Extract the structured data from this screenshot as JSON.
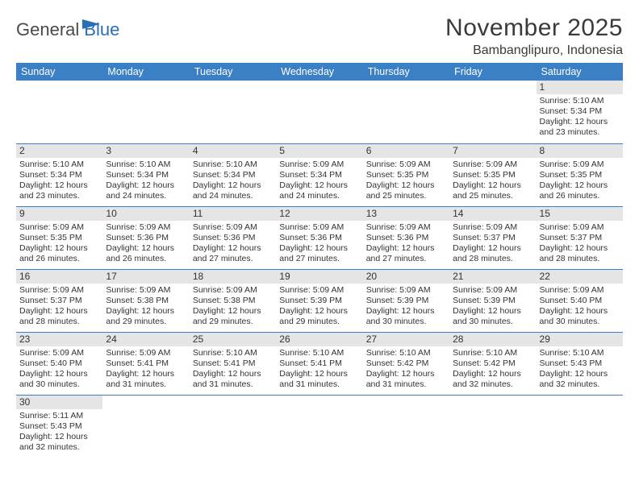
{
  "logo": {
    "general": "General",
    "blue": "Blue"
  },
  "title": "November 2025",
  "location": "Bambanglipuro, Indonesia",
  "colors": {
    "header_bg": "#3b7fc4",
    "header_fg": "#ffffff",
    "daynum_bg": "#e5e5e5",
    "border": "#3b7fc4",
    "text": "#333333",
    "logo_gray": "#4a4a4a",
    "logo_blue": "#2a6fb5"
  },
  "weekdays": [
    "Sunday",
    "Monday",
    "Tuesday",
    "Wednesday",
    "Thursday",
    "Friday",
    "Saturday"
  ],
  "weeks": [
    [
      null,
      null,
      null,
      null,
      null,
      null,
      {
        "n": "1",
        "sr": "Sunrise: 5:10 AM",
        "ss": "Sunset: 5:34 PM",
        "dl1": "Daylight: 12 hours",
        "dl2": "and 23 minutes."
      }
    ],
    [
      {
        "n": "2",
        "sr": "Sunrise: 5:10 AM",
        "ss": "Sunset: 5:34 PM",
        "dl1": "Daylight: 12 hours",
        "dl2": "and 23 minutes."
      },
      {
        "n": "3",
        "sr": "Sunrise: 5:10 AM",
        "ss": "Sunset: 5:34 PM",
        "dl1": "Daylight: 12 hours",
        "dl2": "and 24 minutes."
      },
      {
        "n": "4",
        "sr": "Sunrise: 5:10 AM",
        "ss": "Sunset: 5:34 PM",
        "dl1": "Daylight: 12 hours",
        "dl2": "and 24 minutes."
      },
      {
        "n": "5",
        "sr": "Sunrise: 5:09 AM",
        "ss": "Sunset: 5:34 PM",
        "dl1": "Daylight: 12 hours",
        "dl2": "and 24 minutes."
      },
      {
        "n": "6",
        "sr": "Sunrise: 5:09 AM",
        "ss": "Sunset: 5:35 PM",
        "dl1": "Daylight: 12 hours",
        "dl2": "and 25 minutes."
      },
      {
        "n": "7",
        "sr": "Sunrise: 5:09 AM",
        "ss": "Sunset: 5:35 PM",
        "dl1": "Daylight: 12 hours",
        "dl2": "and 25 minutes."
      },
      {
        "n": "8",
        "sr": "Sunrise: 5:09 AM",
        "ss": "Sunset: 5:35 PM",
        "dl1": "Daylight: 12 hours",
        "dl2": "and 26 minutes."
      }
    ],
    [
      {
        "n": "9",
        "sr": "Sunrise: 5:09 AM",
        "ss": "Sunset: 5:35 PM",
        "dl1": "Daylight: 12 hours",
        "dl2": "and 26 minutes."
      },
      {
        "n": "10",
        "sr": "Sunrise: 5:09 AM",
        "ss": "Sunset: 5:36 PM",
        "dl1": "Daylight: 12 hours",
        "dl2": "and 26 minutes."
      },
      {
        "n": "11",
        "sr": "Sunrise: 5:09 AM",
        "ss": "Sunset: 5:36 PM",
        "dl1": "Daylight: 12 hours",
        "dl2": "and 27 minutes."
      },
      {
        "n": "12",
        "sr": "Sunrise: 5:09 AM",
        "ss": "Sunset: 5:36 PM",
        "dl1": "Daylight: 12 hours",
        "dl2": "and 27 minutes."
      },
      {
        "n": "13",
        "sr": "Sunrise: 5:09 AM",
        "ss": "Sunset: 5:36 PM",
        "dl1": "Daylight: 12 hours",
        "dl2": "and 27 minutes."
      },
      {
        "n": "14",
        "sr": "Sunrise: 5:09 AM",
        "ss": "Sunset: 5:37 PM",
        "dl1": "Daylight: 12 hours",
        "dl2": "and 28 minutes."
      },
      {
        "n": "15",
        "sr": "Sunrise: 5:09 AM",
        "ss": "Sunset: 5:37 PM",
        "dl1": "Daylight: 12 hours",
        "dl2": "and 28 minutes."
      }
    ],
    [
      {
        "n": "16",
        "sr": "Sunrise: 5:09 AM",
        "ss": "Sunset: 5:37 PM",
        "dl1": "Daylight: 12 hours",
        "dl2": "and 28 minutes."
      },
      {
        "n": "17",
        "sr": "Sunrise: 5:09 AM",
        "ss": "Sunset: 5:38 PM",
        "dl1": "Daylight: 12 hours",
        "dl2": "and 29 minutes."
      },
      {
        "n": "18",
        "sr": "Sunrise: 5:09 AM",
        "ss": "Sunset: 5:38 PM",
        "dl1": "Daylight: 12 hours",
        "dl2": "and 29 minutes."
      },
      {
        "n": "19",
        "sr": "Sunrise: 5:09 AM",
        "ss": "Sunset: 5:39 PM",
        "dl1": "Daylight: 12 hours",
        "dl2": "and 29 minutes."
      },
      {
        "n": "20",
        "sr": "Sunrise: 5:09 AM",
        "ss": "Sunset: 5:39 PM",
        "dl1": "Daylight: 12 hours",
        "dl2": "and 30 minutes."
      },
      {
        "n": "21",
        "sr": "Sunrise: 5:09 AM",
        "ss": "Sunset: 5:39 PM",
        "dl1": "Daylight: 12 hours",
        "dl2": "and 30 minutes."
      },
      {
        "n": "22",
        "sr": "Sunrise: 5:09 AM",
        "ss": "Sunset: 5:40 PM",
        "dl1": "Daylight: 12 hours",
        "dl2": "and 30 minutes."
      }
    ],
    [
      {
        "n": "23",
        "sr": "Sunrise: 5:09 AM",
        "ss": "Sunset: 5:40 PM",
        "dl1": "Daylight: 12 hours",
        "dl2": "and 30 minutes."
      },
      {
        "n": "24",
        "sr": "Sunrise: 5:09 AM",
        "ss": "Sunset: 5:41 PM",
        "dl1": "Daylight: 12 hours",
        "dl2": "and 31 minutes."
      },
      {
        "n": "25",
        "sr": "Sunrise: 5:10 AM",
        "ss": "Sunset: 5:41 PM",
        "dl1": "Daylight: 12 hours",
        "dl2": "and 31 minutes."
      },
      {
        "n": "26",
        "sr": "Sunrise: 5:10 AM",
        "ss": "Sunset: 5:41 PM",
        "dl1": "Daylight: 12 hours",
        "dl2": "and 31 minutes."
      },
      {
        "n": "27",
        "sr": "Sunrise: 5:10 AM",
        "ss": "Sunset: 5:42 PM",
        "dl1": "Daylight: 12 hours",
        "dl2": "and 31 minutes."
      },
      {
        "n": "28",
        "sr": "Sunrise: 5:10 AM",
        "ss": "Sunset: 5:42 PM",
        "dl1": "Daylight: 12 hours",
        "dl2": "and 32 minutes."
      },
      {
        "n": "29",
        "sr": "Sunrise: 5:10 AM",
        "ss": "Sunset: 5:43 PM",
        "dl1": "Daylight: 12 hours",
        "dl2": "and 32 minutes."
      }
    ],
    [
      {
        "n": "30",
        "sr": "Sunrise: 5:11 AM",
        "ss": "Sunset: 5:43 PM",
        "dl1": "Daylight: 12 hours",
        "dl2": "and 32 minutes."
      },
      null,
      null,
      null,
      null,
      null,
      null
    ]
  ]
}
